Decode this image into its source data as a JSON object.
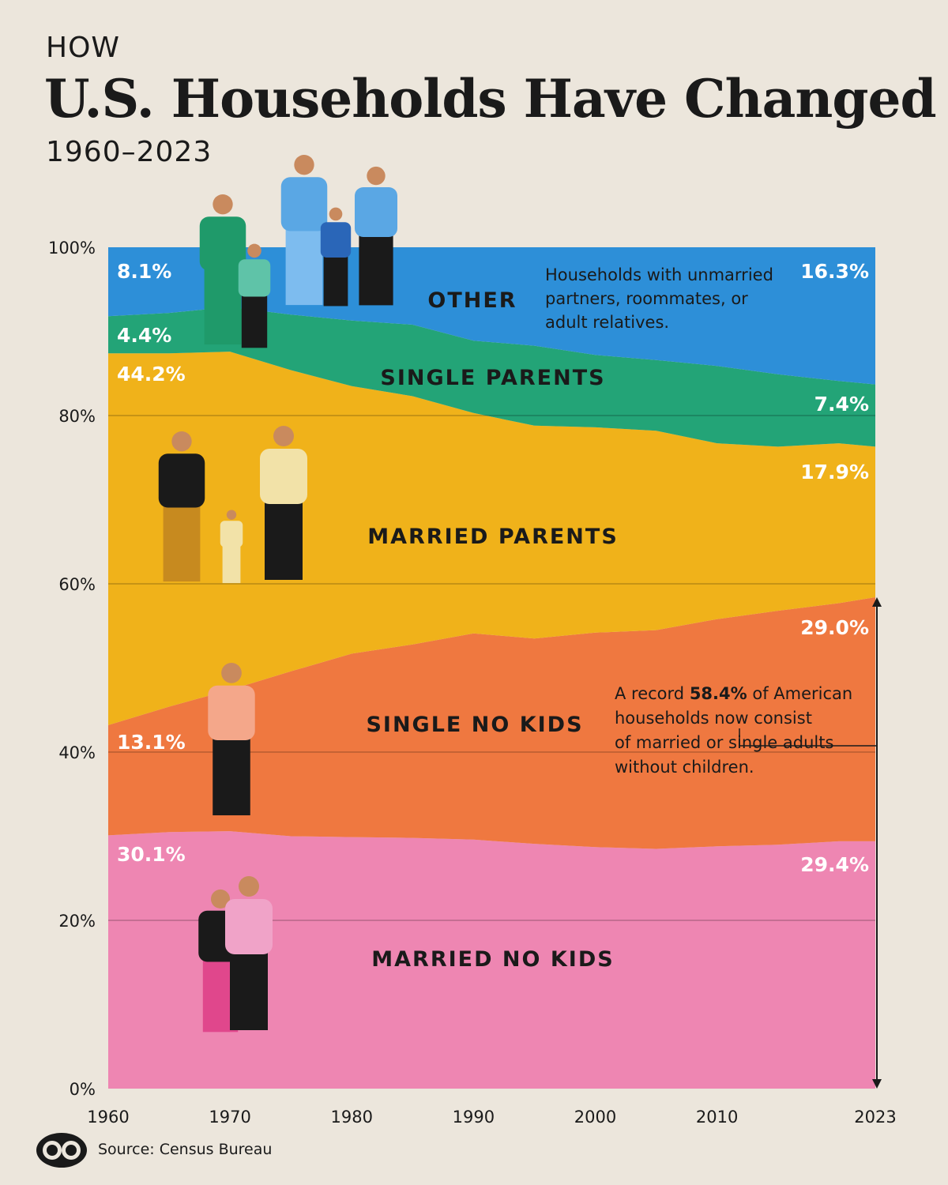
{
  "header": {
    "kicker": "HOW",
    "title": "U.S. Households Have Changed",
    "subtitle": "1960–2023"
  },
  "footer": {
    "source": "Source: Census Bureau"
  },
  "colors": {
    "married_no_kids": "#ee86b2",
    "single_no_kids": "#ef7840",
    "married_parents": "#f0b21a",
    "single_parents": "#23a477",
    "other": "#2d8fd8",
    "background": "#ece6dc",
    "text_dark": "#1a1a1a",
    "text_light": "#ffffff"
  },
  "chart_data": {
    "type": "area",
    "stacked": true,
    "x": [
      1960,
      1965,
      1970,
      1975,
      1980,
      1985,
      1990,
      1995,
      2000,
      2005,
      2010,
      2015,
      2020,
      2023
    ],
    "ylim": [
      0,
      100
    ],
    "y_ticks": [
      "0%",
      "20%",
      "40%",
      "60%",
      "80%",
      "100%"
    ],
    "x_ticks": [
      "1960",
      "1970",
      "1980",
      "1990",
      "2000",
      "2010",
      "2023"
    ],
    "series": [
      {
        "name": "MARRIED NO KIDS",
        "key": "married_no_kids",
        "values": [
          30.1,
          30.5,
          30.6,
          30.0,
          29.9,
          29.8,
          29.6,
          29.1,
          28.7,
          28.5,
          28.8,
          29.0,
          29.4,
          29.4
        ]
      },
      {
        "name": "SINGLE NO KIDS",
        "key": "single_no_kids",
        "values": [
          13.1,
          14.9,
          16.8,
          19.6,
          21.8,
          23.0,
          24.5,
          24.4,
          25.5,
          26.0,
          27.0,
          27.8,
          28.3,
          29.0
        ]
      },
      {
        "name": "MARRIED PARENTS",
        "key": "married_parents",
        "values": [
          44.2,
          42.0,
          40.2,
          35.8,
          31.8,
          29.5,
          26.2,
          25.3,
          24.4,
          23.7,
          20.9,
          19.5,
          19.0,
          17.9
        ]
      },
      {
        "name": "SINGLE PARENTS",
        "key": "single_parents",
        "values": [
          4.4,
          4.8,
          5.3,
          6.6,
          7.8,
          8.5,
          8.6,
          9.5,
          8.6,
          8.4,
          9.2,
          8.6,
          7.4,
          7.4
        ]
      },
      {
        "name": "OTHER",
        "key": "other",
        "values": [
          8.1,
          7.8,
          7.1,
          8.0,
          8.7,
          9.2,
          11.1,
          11.7,
          12.8,
          13.4,
          14.1,
          15.1,
          15.9,
          16.3
        ]
      }
    ],
    "start_labels": [
      "30.1%",
      "13.1%",
      "44.2%",
      "4.4%",
      "8.1%"
    ],
    "end_labels": [
      "29.4%",
      "29.0%",
      "17.9%",
      "7.4%",
      "16.3%"
    ],
    "annotations": {
      "other_note": [
        "Households with unmarried",
        "partners, roommates, or",
        "adult relatives."
      ],
      "record_note": {
        "lines": [
          [
            "A record ",
            "58.4%",
            " of American"
          ],
          [
            "households now consist",
            "",
            ""
          ],
          [
            "of married or single adults",
            "",
            ""
          ],
          [
            "without children.",
            "",
            ""
          ]
        ],
        "value": 58.4
      }
    }
  }
}
